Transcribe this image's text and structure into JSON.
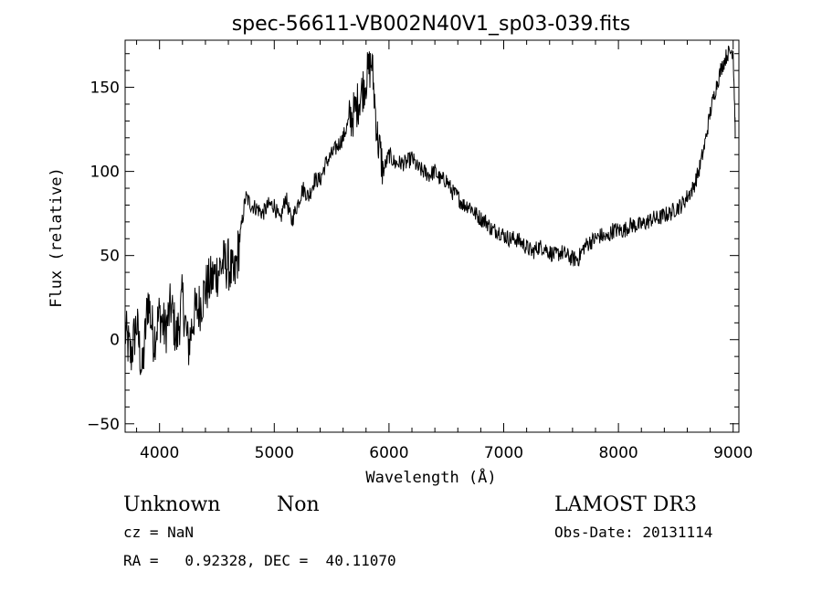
{
  "chart_data": {
    "type": "line",
    "title": "spec-56611-VB002N40V1_sp03-039.fits",
    "xlabel": "Wavelength (Å)",
    "ylabel": "Flux (relative)",
    "xlim": [
      3700,
      9050
    ],
    "ylim": [
      -55,
      178
    ],
    "x_ticks": [
      4000,
      5000,
      6000,
      7000,
      8000,
      9000
    ],
    "y_ticks": [
      -50,
      0,
      50,
      100,
      150
    ],
    "x_tick_labels": [
      "4000",
      "5000",
      "6000",
      "7000",
      "8000",
      "9000"
    ],
    "y_tick_labels": [
      "−50",
      "0",
      "50",
      "100",
      "150"
    ],
    "grid": false,
    "legend": "none",
    "series": [
      {
        "color": "#000000",
        "x": [
          3700,
          3750,
          3800,
          3850,
          3900,
          3950,
          4000,
          4050,
          4100,
          4150,
          4200,
          4250,
          4300,
          4350,
          4400,
          4450,
          4500,
          4550,
          4600,
          4650,
          4700,
          4750,
          4800,
          4850,
          4900,
          4950,
          5000,
          5050,
          5100,
          5150,
          5200,
          5250,
          5300,
          5350,
          5400,
          5450,
          5500,
          5550,
          5600,
          5650,
          5700,
          5750,
          5800,
          5850,
          5900,
          5950,
          6000,
          6050,
          6100,
          6150,
          6200,
          6250,
          6300,
          6350,
          6400,
          6450,
          6500,
          6550,
          6600,
          6650,
          6700,
          6750,
          6800,
          6850,
          6900,
          6950,
          7000,
          7050,
          7100,
          7150,
          7200,
          7250,
          7300,
          7350,
          7400,
          7450,
          7500,
          7550,
          7600,
          7650,
          7700,
          7750,
          7800,
          7850,
          7900,
          7950,
          8000,
          8050,
          8100,
          8150,
          8200,
          8250,
          8300,
          8350,
          8400,
          8450,
          8500,
          8550,
          8600,
          8650,
          8700,
          8750,
          8800,
          8850,
          8900,
          8950,
          9000,
          9020
        ],
        "y": [
          5,
          -10,
          10,
          -20,
          25,
          0,
          15,
          5,
          20,
          0,
          25,
          -5,
          15,
          20,
          30,
          35,
          40,
          45,
          45,
          35,
          60,
          85,
          80,
          78,
          75,
          80,
          80,
          70,
          85,
          70,
          80,
          90,
          85,
          95,
          95,
          105,
          110,
          115,
          120,
          130,
          135,
          145,
          155,
          165,
          120,
          100,
          110,
          105,
          105,
          105,
          108,
          102,
          100,
          98,
          100,
          95,
          95,
          88,
          85,
          80,
          80,
          75,
          72,
          70,
          65,
          65,
          62,
          60,
          60,
          58,
          55,
          52,
          55,
          55,
          52,
          50,
          52,
          50,
          48,
          48,
          55,
          58,
          60,
          62,
          60,
          65,
          65,
          65,
          68,
          68,
          68,
          70,
          72,
          72,
          74,
          75,
          78,
          80,
          85,
          90,
          100,
          115,
          135,
          150,
          162,
          170,
          172,
          120
        ]
      }
    ],
    "annotations": {
      "object_class": "Unknown",
      "object_subclass": "Non",
      "redshift": "cz = NaN",
      "coords": "RA =   0.92328, DEC =  40.11070",
      "survey": "LAMOST DR3",
      "obs_date": "Obs-Date: 20131114"
    }
  }
}
